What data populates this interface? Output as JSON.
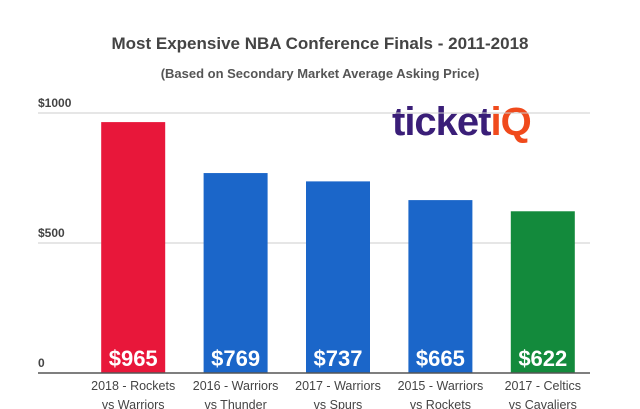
{
  "chart_data": {
    "type": "bar",
    "title": "Most Expensive NBA Conference Finals - 2011-2018",
    "subtitle": "(Based on Secondary Market Average Asking Price)",
    "categories": [
      [
        "2018 - Rockets",
        "vs Warriors"
      ],
      [
        "2016 - Warriors",
        "vs Thunder"
      ],
      [
        "2017 - Warriors",
        "vs Spurs"
      ],
      [
        "2015 - Warriors",
        "vs Rockets"
      ],
      [
        "2017 - Celtics",
        "vs Cavaliers"
      ]
    ],
    "values": [
      965,
      769,
      737,
      665,
      622
    ],
    "data_labels": [
      "$965",
      "$769",
      "$737",
      "$665",
      "$622"
    ],
    "colors": [
      "#e8173a",
      "#1b66c9",
      "#1b66c9",
      "#1b66c9",
      "#138a3c"
    ],
    "yticks": [
      {
        "value": 0,
        "label": "0"
      },
      {
        "value": 500,
        "label": "$500"
      },
      {
        "value": 1000,
        "label": "$1000"
      }
    ],
    "ylim": [
      0,
      1000
    ],
    "xlabel": "",
    "ylabel": "",
    "grid": true
  },
  "logo": {
    "part1": "ticket",
    "part2": "iQ"
  }
}
